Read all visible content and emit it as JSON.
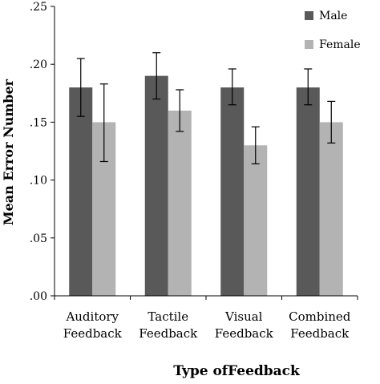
{
  "chart_data": {
    "type": "bar",
    "xlabel": "Type ofFeedback",
    "ylabel": "Mean Error Number",
    "ylim": [
      0,
      0.25
    ],
    "yticks": [
      ".00",
      ".05",
      ".10",
      ".15",
      ".20",
      ".25"
    ],
    "ytick_values": [
      0,
      0.05,
      0.1,
      0.15,
      0.2,
      0.25
    ],
    "grid": false,
    "legend_position": "top-right",
    "categories": [
      [
        "Auditory",
        "Feedback"
      ],
      [
        "Tactile",
        "Feedback"
      ],
      [
        "Visual",
        "Feedback"
      ],
      [
        "Combined",
        "Feedback"
      ]
    ],
    "series": [
      {
        "name": "Male",
        "color": "#595959",
        "values": [
          0.18,
          0.19,
          0.18,
          0.18
        ],
        "error_low": [
          0.155,
          0.17,
          0.165,
          0.165
        ],
        "error_high": [
          0.205,
          0.21,
          0.196,
          0.196
        ]
      },
      {
        "name": "Female",
        "color": "#b3b3b3",
        "values": [
          0.15,
          0.16,
          0.13,
          0.15
        ],
        "error_low": [
          0.116,
          0.142,
          0.114,
          0.132
        ],
        "error_high": [
          0.183,
          0.178,
          0.146,
          0.168
        ]
      }
    ]
  }
}
